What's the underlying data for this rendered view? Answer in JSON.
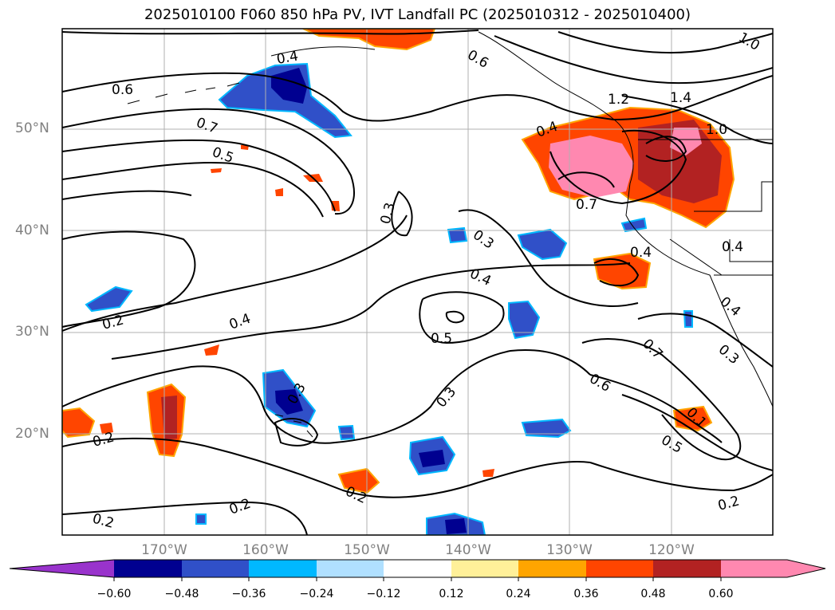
{
  "title": "2025010100 F060 850 hPa PV, IVT Landfall PC (2025010312 - 2025010400)",
  "map": {
    "lat_labels": [
      "50°N",
      "40°N",
      "30°N",
      "20°N"
    ],
    "lon_labels": [
      "170°W",
      "160°W",
      "150°W",
      "140°W",
      "130°W",
      "120°W"
    ],
    "contour_labels": [
      "0.6",
      "0.6",
      "0.7",
      "0.5",
      "0.4",
      "0.2",
      "0.4",
      "0.3",
      "0.3",
      "0.4",
      "0.5",
      "0.3",
      "0.2",
      "0.2",
      "0.2",
      "0.2",
      "0.3",
      "0.4",
      "0.7",
      "1.2",
      "1.4",
      "1.0",
      "1.0",
      "0.4",
      "0.4",
      "0.7",
      "0.6",
      "0.5",
      "0.1",
      "0.2",
      "0.4",
      "0.3"
    ]
  },
  "colorbar": {
    "ticks": [
      "−0.60",
      "−0.48",
      "−0.36",
      "−0.24",
      "−0.12",
      "0.12",
      "0.24",
      "0.36",
      "0.48",
      "0.60"
    ],
    "colors": [
      "#9933cc",
      "#000090",
      "#3050c8",
      "#00b8ff",
      "#b0e0ff",
      "#ffffff",
      "#fff099",
      "#ffa500",
      "#ff4500",
      "#b22222",
      "#ff88b0",
      "#ff88b0"
    ]
  }
}
